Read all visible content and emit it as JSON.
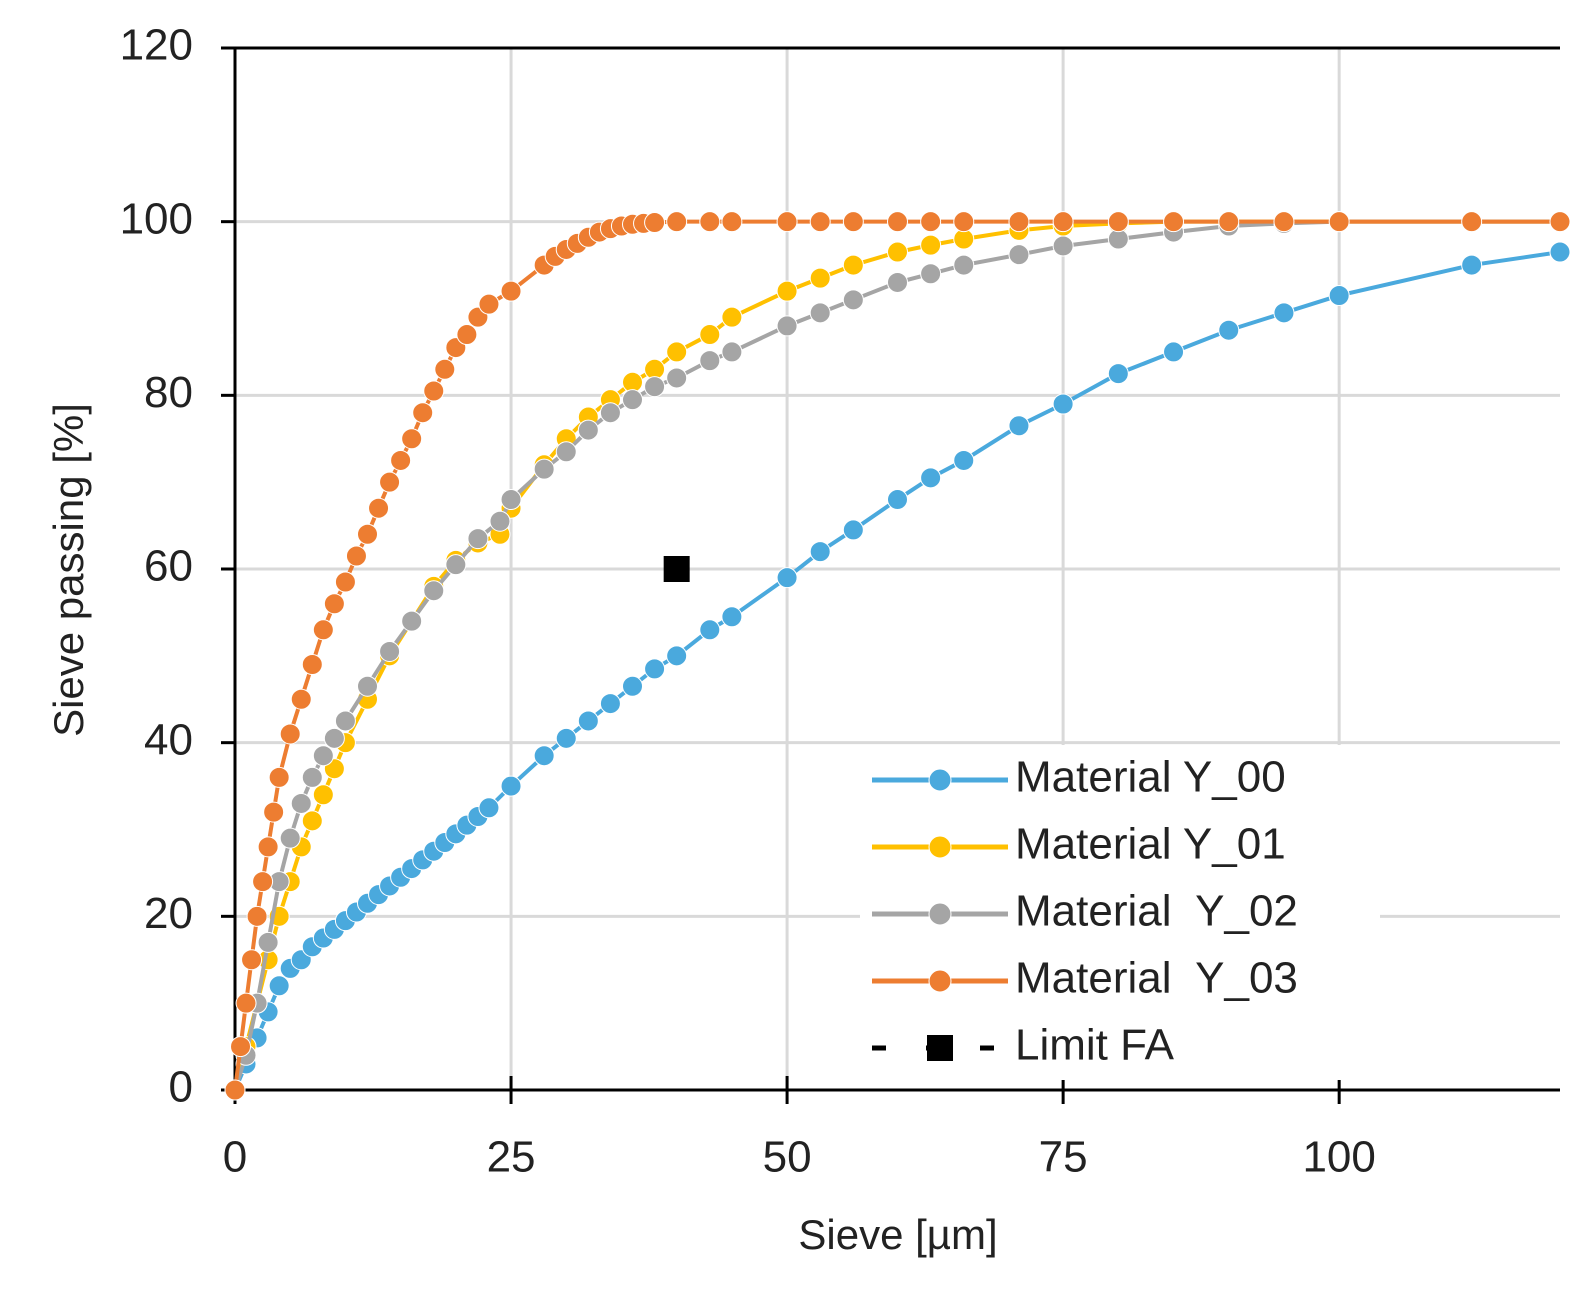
{
  "chart_data": {
    "type": "line",
    "xlabel": "Sieve [µm]",
    "ylabel": "Sieve passing [%]",
    "xlim": [
      0,
      120
    ],
    "ylim": [
      0,
      120
    ],
    "xticks": [
      0,
      25,
      50,
      75,
      100
    ],
    "yticks": [
      0,
      20,
      40,
      60,
      80,
      100,
      120
    ],
    "grid": true,
    "legend": "lower right",
    "series": [
      {
        "name": "Material Y_00",
        "color": "#4aa9dd",
        "marker": "circle",
        "x": [
          0,
          1,
          2,
          3,
          4,
          5,
          6,
          7,
          8,
          9,
          10,
          11,
          12,
          13,
          14,
          15,
          16,
          17,
          18,
          19,
          20,
          21,
          22,
          23,
          25,
          28,
          30,
          32,
          34,
          36,
          38,
          40,
          43,
          45,
          50,
          53,
          56,
          60,
          63,
          66,
          71,
          75,
          80,
          85,
          90,
          95,
          100,
          112,
          120
        ],
        "values": [
          0,
          3,
          6,
          9,
          12,
          14,
          15,
          16.5,
          17.5,
          18.5,
          19.5,
          20.5,
          21.5,
          22.5,
          23.5,
          24.5,
          25.5,
          26.5,
          27.5,
          28.5,
          29.5,
          30.5,
          31.5,
          32.5,
          35,
          38.5,
          40.5,
          42.5,
          44.5,
          46.5,
          48.5,
          50,
          53,
          54.5,
          59,
          62,
          64.5,
          68,
          70.5,
          72.5,
          76.5,
          79,
          82.5,
          85,
          87.5,
          89.5,
          91.5,
          95,
          96.5
        ]
      },
      {
        "name": "Material Y_01",
        "color": "#ffc000",
        "marker": "circle",
        "x": [
          0,
          1,
          2,
          3,
          4,
          5,
          6,
          7,
          8,
          9,
          10,
          12,
          14,
          16,
          18,
          20,
          22,
          24,
          25,
          28,
          30,
          32,
          34,
          36,
          38,
          40,
          43,
          45,
          50,
          53,
          56,
          60,
          63,
          66,
          71,
          75,
          80,
          85,
          90,
          95,
          100,
          112,
          120
        ],
        "values": [
          0,
          5,
          10,
          15,
          20,
          24,
          28,
          31,
          34,
          37,
          40,
          45,
          50,
          54,
          58,
          61,
          63,
          64,
          67,
          72,
          75,
          77.5,
          79.5,
          81.5,
          83,
          85,
          87,
          89,
          92,
          93.5,
          95,
          96.5,
          97.3,
          98,
          99,
          99.5,
          99.8,
          100,
          100,
          100,
          100,
          100,
          100
        ]
      },
      {
        "name": "Material  Y_02",
        "color": "#a5a5a5",
        "marker": "circle",
        "x": [
          0,
          1,
          2,
          3,
          4,
          5,
          6,
          7,
          8,
          9,
          10,
          12,
          14,
          16,
          18,
          20,
          22,
          24,
          25,
          28,
          30,
          32,
          34,
          36,
          38,
          40,
          43,
          45,
          50,
          53,
          56,
          60,
          63,
          66,
          71,
          75,
          80,
          85,
          90,
          95,
          100,
          112,
          120
        ],
        "values": [
          0,
          4,
          10,
          17,
          24,
          29,
          33,
          36,
          38.5,
          40.5,
          42.5,
          46.5,
          50.5,
          54,
          57.5,
          60.5,
          63.5,
          65.5,
          68,
          71.5,
          73.5,
          76,
          78,
          79.5,
          81,
          82,
          84,
          85,
          88,
          89.5,
          91,
          93,
          94,
          95,
          96.2,
          97.2,
          98,
          98.8,
          99.5,
          99.8,
          100,
          100,
          100
        ]
      },
      {
        "name": "Material  Y_03",
        "color": "#ed7d31",
        "marker": "circle",
        "x": [
          0,
          0.5,
          1,
          1.5,
          2,
          2.5,
          3,
          3.5,
          4,
          5,
          6,
          7,
          8,
          9,
          10,
          11,
          12,
          13,
          14,
          15,
          16,
          17,
          18,
          19,
          20,
          21,
          22,
          23,
          25,
          28,
          29,
          30,
          31,
          32,
          33,
          34,
          35,
          36,
          37,
          38,
          40,
          43,
          45,
          50,
          53,
          56,
          60,
          63,
          66,
          71,
          75,
          80,
          85,
          90,
          95,
          100,
          112,
          120
        ],
        "values": [
          0,
          5,
          10,
          15,
          20,
          24,
          28,
          32,
          36,
          41,
          45,
          49,
          53,
          56,
          58.5,
          61.5,
          64,
          67,
          70,
          72.5,
          75,
          78,
          80.5,
          83,
          85.5,
          87,
          89,
          90.5,
          92,
          95,
          96,
          96.8,
          97.5,
          98.2,
          98.8,
          99.2,
          99.5,
          99.7,
          99.8,
          99.9,
          100,
          100,
          100,
          100,
          100,
          100,
          100,
          100,
          100,
          100,
          100,
          100,
          100,
          100,
          100,
          100,
          100,
          100
        ]
      },
      {
        "name": "Limit FA",
        "color": "#000000",
        "marker": "square",
        "linestyle": "dashed",
        "x": [
          40
        ],
        "values": [
          60
        ]
      }
    ]
  }
}
